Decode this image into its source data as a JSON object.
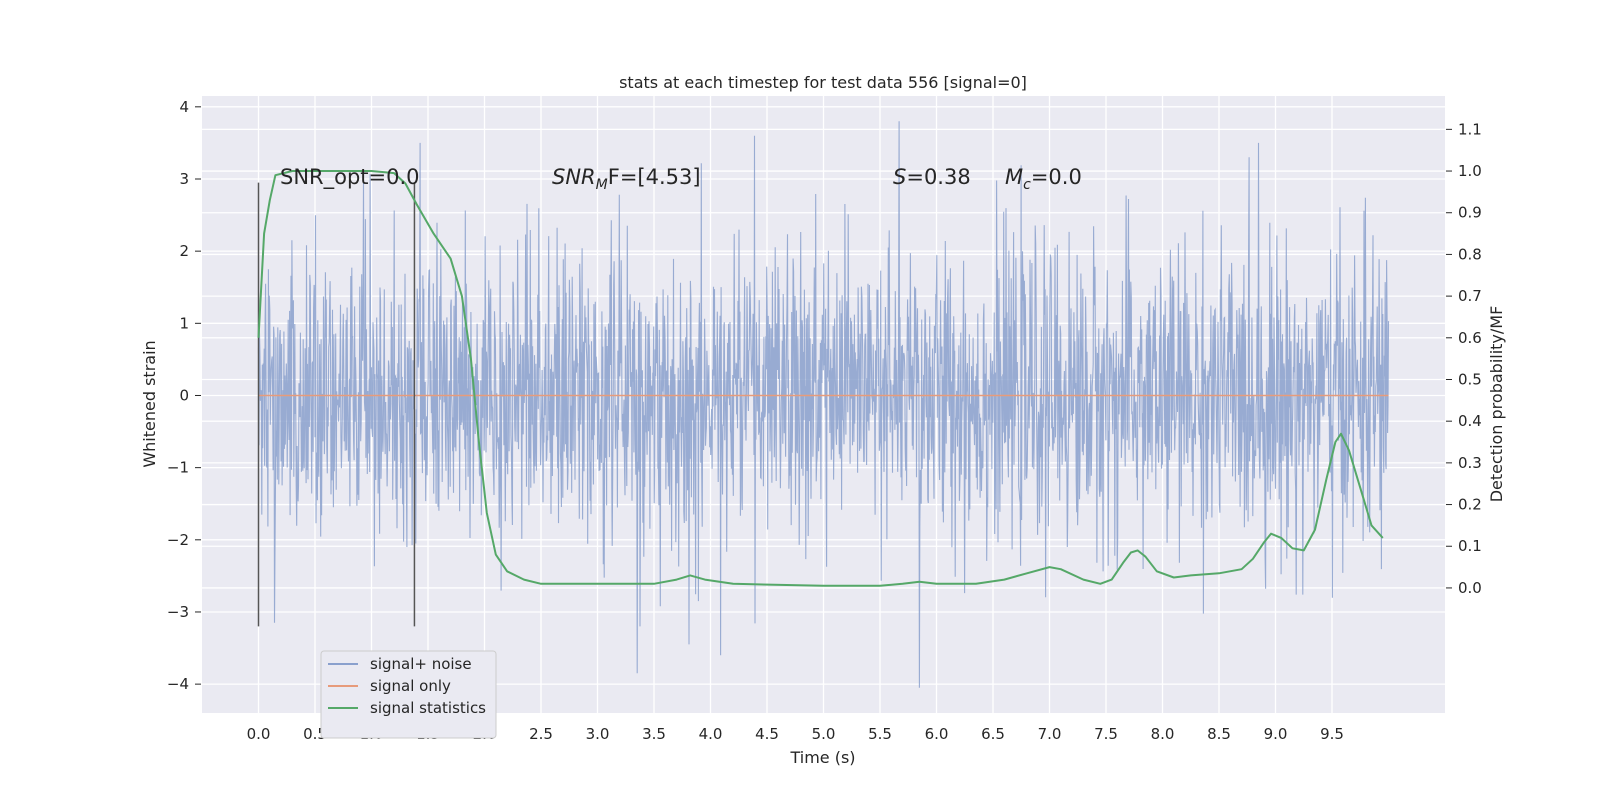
{
  "chart_data": {
    "type": "line",
    "title": "stats at each timestep for test data 556 [signal=0]",
    "xlabel": "Time (s)",
    "ylabel": "Whitened strain",
    "y2label": "Detection probability/MF",
    "xlim": [
      -0.5,
      10.5
    ],
    "ylim": [
      -4.4,
      4.15
    ],
    "y2lim": [
      -0.3,
      1.18
    ],
    "x_ticks": [
      "0.0",
      "0.5",
      "1.0",
      "1.5",
      "2.0",
      "2.5",
      "3.0",
      "3.5",
      "4.0",
      "4.5",
      "5.0",
      "5.5",
      "6.0",
      "6.5",
      "7.0",
      "7.5",
      "8.0",
      "8.5",
      "9.0",
      "9.5"
    ],
    "y_ticks": [
      "4",
      "3",
      "2",
      "1",
      "0",
      "−1",
      "−2",
      "−3",
      "−4"
    ],
    "y2_ticks": [
      "1.1",
      "1.0",
      "0.9",
      "0.8",
      "0.7",
      "0.6",
      "0.5",
      "0.4",
      "0.3",
      "0.2",
      "0.1",
      "0.0"
    ],
    "grid": true,
    "legend_position": "lower-left",
    "annotations": {
      "snr_opt": "SNR_opt=0.0",
      "snr_mf_prefix": "SNR",
      "snr_mf_sub": "M",
      "snr_mf_suffix": "F=[4.53]",
      "s_label": "S",
      "s_value": "=0.38",
      "mc_label": "M",
      "mc_sub": "c",
      "mc_value": "=0.0"
    },
    "vlines_x": [
      0.0,
      1.38
    ],
    "series": [
      {
        "name": "signal+ noise",
        "color": "#8aa0cd",
        "x_range": [
          0.0,
          10.0
        ],
        "typical_amplitude": 1.0,
        "max": 3.8,
        "min": -4.05,
        "spikes": [
          {
            "x": 0.14,
            "y": -3.15
          },
          {
            "x": 1.43,
            "y": 3.5
          },
          {
            "x": 3.35,
            "y": -3.85
          },
          {
            "x": 3.81,
            "y": -3.45
          },
          {
            "x": 4.09,
            "y": -3.6
          },
          {
            "x": 4.39,
            "y": 3.6
          },
          {
            "x": 5.67,
            "y": 3.8
          },
          {
            "x": 5.85,
            "y": -4.05
          },
          {
            "x": 8.85,
            "y": 3.5
          }
        ]
      },
      {
        "name": "signal only",
        "color": "#e79b7b",
        "x": [
          0.0,
          10.0
        ],
        "y": [
          0.0,
          0.0
        ]
      },
      {
        "name": "signal statistics",
        "color": "#55a868",
        "x": [
          0.0,
          0.05,
          0.1,
          0.15,
          0.3,
          0.5,
          0.7,
          1.0,
          1.2,
          1.3,
          1.4,
          1.55,
          1.7,
          1.8,
          1.88,
          1.95,
          2.02,
          2.1,
          2.2,
          2.35,
          2.5,
          3.0,
          3.5,
          3.7,
          3.82,
          3.95,
          4.2,
          5.0,
          5.5,
          5.7,
          5.85,
          6.0,
          6.35,
          6.6,
          6.8,
          7.0,
          7.1,
          7.3,
          7.45,
          7.55,
          7.65,
          7.72,
          7.78,
          7.85,
          7.95,
          8.1,
          8.25,
          8.5,
          8.7,
          8.8,
          8.9,
          8.96,
          9.05,
          9.15,
          9.25,
          9.35,
          9.45,
          9.53,
          9.58,
          9.65,
          9.75,
          9.85,
          9.95
        ],
        "y": [
          0.6,
          0.85,
          0.93,
          0.99,
          1.0,
          1.0,
          1.0,
          1.0,
          0.995,
          0.97,
          0.92,
          0.85,
          0.79,
          0.7,
          0.55,
          0.35,
          0.18,
          0.08,
          0.04,
          0.02,
          0.01,
          0.01,
          0.01,
          0.02,
          0.03,
          0.02,
          0.01,
          0.005,
          0.005,
          0.01,
          0.015,
          0.01,
          0.01,
          0.02,
          0.035,
          0.05,
          0.045,
          0.02,
          0.01,
          0.02,
          0.06,
          0.085,
          0.09,
          0.075,
          0.04,
          0.025,
          0.03,
          0.035,
          0.045,
          0.07,
          0.11,
          0.13,
          0.12,
          0.095,
          0.09,
          0.14,
          0.26,
          0.35,
          0.37,
          0.33,
          0.24,
          0.15,
          0.12
        ]
      }
    ]
  }
}
